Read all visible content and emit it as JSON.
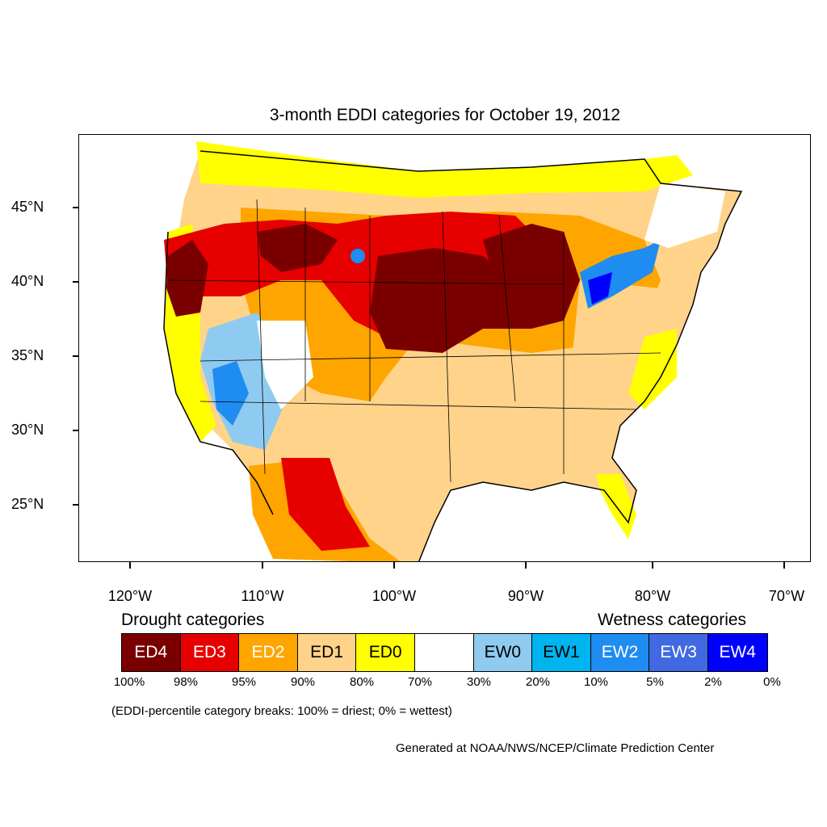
{
  "map": {
    "title": "3-month EDDI categories for October 19, 2012",
    "lat_labels": [
      "45°N",
      "40°N",
      "35°N",
      "30°N",
      "25°N"
    ],
    "lon_labels": [
      "120°W",
      "110°W",
      "100°W",
      "90°W",
      "80°W",
      "70°W"
    ],
    "region": "Contiguous United States with parts of Canada and Mexico"
  },
  "legend": {
    "drought_heading": "Drought categories",
    "wetness_heading": "Wetness categories",
    "categories": [
      {
        "label": "ED4",
        "color": "#7a0000",
        "text_color": "#ffffff"
      },
      {
        "label": "ED3",
        "color": "#e60000",
        "text_color": "#ffffff"
      },
      {
        "label": "ED2",
        "color": "#ffa500",
        "text_color": "#ffffff"
      },
      {
        "label": "ED1",
        "color": "#ffd38a",
        "text_color": "#000000"
      },
      {
        "label": "ED0",
        "color": "#ffff00",
        "text_color": "#000000"
      },
      {
        "label": "",
        "color": "#ffffff",
        "text_color": "#000000"
      },
      {
        "label": "EW0",
        "color": "#8fcbf0",
        "text_color": "#000000"
      },
      {
        "label": "EW1",
        "color": "#00b4f0",
        "text_color": "#000000"
      },
      {
        "label": "EW2",
        "color": "#1e8cf0",
        "text_color": "#ffffff"
      },
      {
        "label": "EW3",
        "color": "#4169e1",
        "text_color": "#ffffff"
      },
      {
        "label": "EW4",
        "color": "#0000ff",
        "text_color": "#ffffff"
      }
    ],
    "percentiles": [
      "100%",
      "98%",
      "95%",
      "90%",
      "80%",
      "70%",
      "30%",
      "20%",
      "10%",
      "5%",
      "2%",
      "0%"
    ],
    "note": "(EDDI-percentile category breaks: 100% = driest; 0% = wettest)"
  },
  "credit": "Generated at NOAA/NWS/NCEP/Climate Prediction Center"
}
